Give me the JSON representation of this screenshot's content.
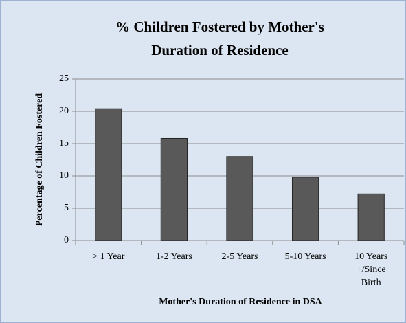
{
  "chart_data": {
    "type": "bar",
    "title": "% Children Fostered by Mother's Duration of Residence",
    "x_label": "Mother's Duration of Residence in DSA",
    "y_label": "Percentage of Children Fostered",
    "categories": [
      "> 1 Year",
      "1-2 Years",
      "2-5 Years",
      "5-10 Years",
      "10 Years +/Since Birth"
    ],
    "values": [
      20.4,
      15.8,
      13.0,
      9.8,
      7.2
    ],
    "color": "#595959",
    "ylim": [
      0,
      25
    ],
    "yticks": [
      0,
      5,
      10,
      15,
      20,
      25
    ],
    "grid": true
  }
}
